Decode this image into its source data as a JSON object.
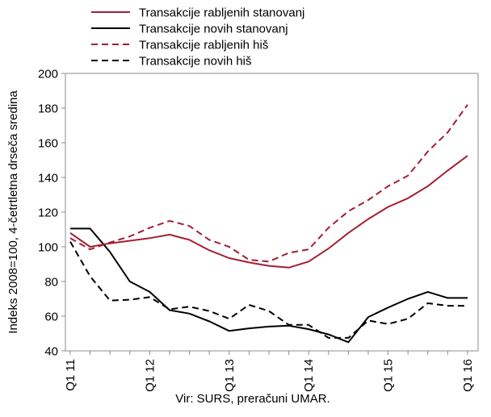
{
  "chart_data": {
    "type": "line",
    "title": "",
    "xlabel": "",
    "ylabel": "Indeks 2008=100, 4-četrtletna drseča sredina",
    "source_note": "Vir: SURS, preračuni UMAR.",
    "ylim": [
      40,
      200
    ],
    "yticks": [
      40,
      60,
      80,
      100,
      120,
      140,
      160,
      180,
      200
    ],
    "grid": false,
    "legend_position": "top",
    "x": [
      "Q1 11",
      "Q2 11",
      "Q3 11",
      "Q4 11",
      "Q1 12",
      "Q2 12",
      "Q3 12",
      "Q4 12",
      "Q1 13",
      "Q2 13",
      "Q3 13",
      "Q4 13",
      "Q1 14",
      "Q2 14",
      "Q3 14",
      "Q4 14",
      "Q1 15",
      "Q2 15",
      "Q3 15",
      "Q4 15",
      "Q1 16"
    ],
    "xtick_labels": [
      "Q1 11",
      "Q1 12",
      "Q1 13",
      "Q1 14",
      "Q1 15",
      "Q1 16"
    ],
    "series": [
      {
        "name": "Transakcije rabljenih stanovanj",
        "color": "#a31f34",
        "dash": "solid",
        "values": [
          108,
          100,
          102,
          103.5,
          105,
          107,
          104,
          98,
          93.5,
          91,
          89,
          88,
          91.5,
          99,
          108,
          116,
          123,
          128,
          135,
          144,
          152.5
        ]
      },
      {
        "name": "Transakcije novih stanovanj",
        "color": "#000000",
        "dash": "solid",
        "values": [
          110.5,
          110.5,
          97,
          80,
          74,
          63.5,
          61.5,
          57,
          51.5,
          53,
          54,
          54.5,
          52.5,
          49.5,
          45,
          59.5,
          65,
          70,
          74,
          70.5,
          70.5
        ]
      },
      {
        "name": "Transakcije rabljenih hiš",
        "color": "#a31f34",
        "dash": "dashed",
        "values": [
          105,
          98.5,
          102.5,
          106,
          111,
          115,
          112,
          104,
          100,
          92.5,
          91.5,
          96.5,
          98.5,
          111,
          120.5,
          127,
          135,
          141,
          155,
          166,
          182
        ]
      },
      {
        "name": "Transakcije novih hiš",
        "color": "#000000",
        "dash": "dashed",
        "values": [
          103,
          83,
          69,
          69.5,
          71,
          64,
          65.5,
          63,
          58.5,
          66.5,
          63,
          55,
          55,
          47.5,
          47.5,
          57.5,
          55.5,
          58.5,
          67.5,
          66,
          66
        ]
      }
    ]
  }
}
